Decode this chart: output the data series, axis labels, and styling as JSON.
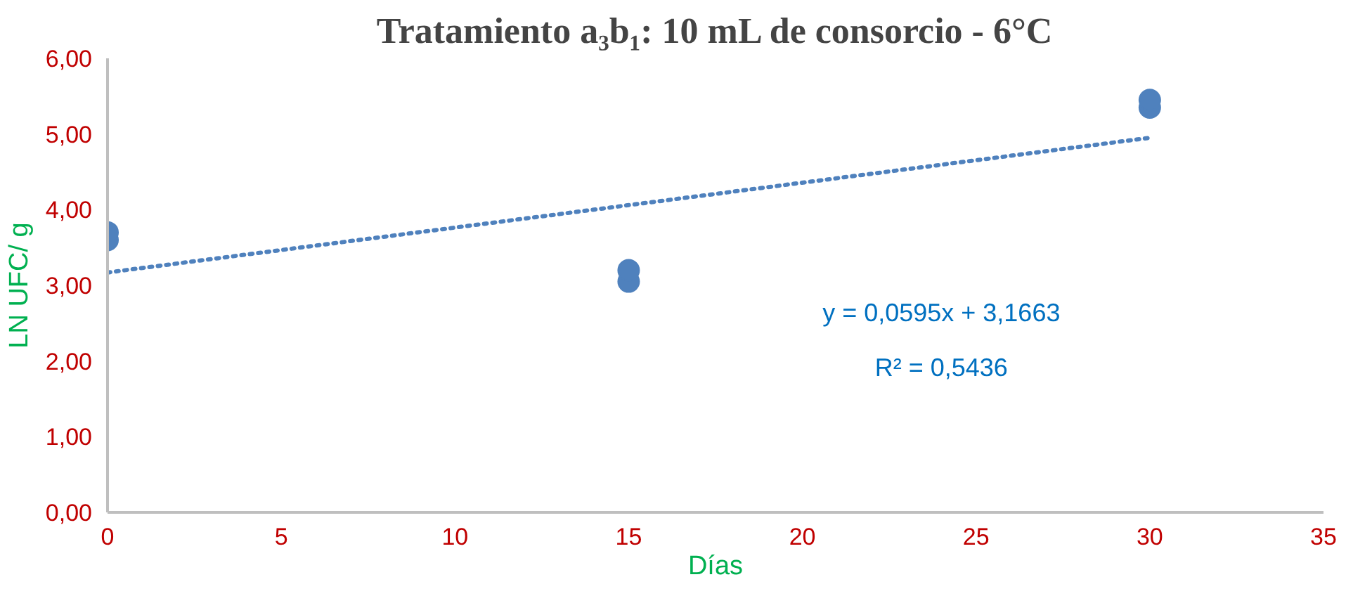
{
  "chart_data": {
    "type": "scatter",
    "title": "Tratamiento a₃b₁: 10 mL de consorcio - 6°C",
    "xlabel": "Días",
    "ylabel": "LN UFC/ g",
    "series": [
      {
        "color": "#4f81bd",
        "x": [
          0,
          0,
          15,
          15,
          30,
          30
        ],
        "values": [
          3.6,
          3.7,
          3.05,
          3.2,
          5.35,
          5.45
        ],
        "marker": "circle"
      },
      {
        "type": "line",
        "color": "#4f81bd",
        "x": [
          0,
          30
        ],
        "values": [
          3.17,
          4.95
        ],
        "line_style": "dotted"
      }
    ],
    "annotations": [
      "y = 0,0595x + 3,1663",
      "R² = 0,5436"
    ],
    "xlim": [
      0,
      35
    ],
    "xticks": [
      0,
      5,
      10,
      15,
      20,
      25,
      30,
      35
    ],
    "ylim": [
      0,
      6
    ],
    "yticks": [
      {
        "value": 0,
        "label": "0,00"
      },
      {
        "value": 1,
        "label": "1,00"
      },
      {
        "value": 2,
        "label": "2,00"
      },
      {
        "value": 3,
        "label": "3,00"
      },
      {
        "value": 4,
        "label": "4,00"
      },
      {
        "value": 5,
        "label": "5,00"
      },
      {
        "value": 6,
        "label": "6,00"
      }
    ]
  }
}
